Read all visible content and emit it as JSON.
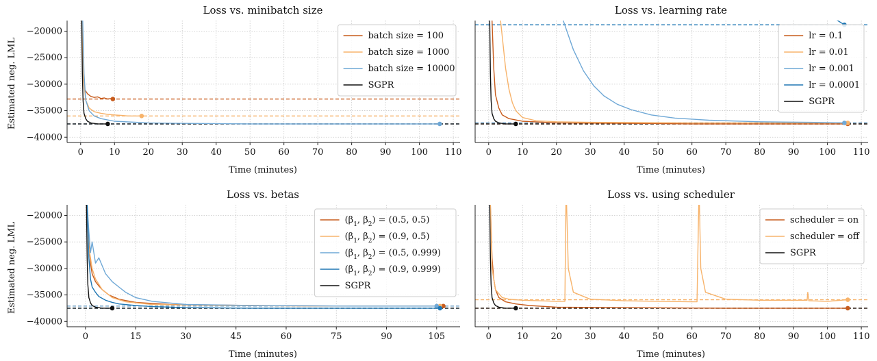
{
  "colors": {
    "orange_dark": "#c75b1c",
    "orange_light": "#f7b36b",
    "blue_light": "#6fa8d6",
    "blue_dark": "#1f77b4",
    "black": "#111111"
  },
  "ylabel": "Estimated neg. LML",
  "chart_data": [
    {
      "type": "line",
      "title": "Loss vs. minibatch size",
      "xlabel": "Time (minutes)",
      "ylabel": "Estimated neg. LML",
      "xlim": [
        -4,
        112
      ],
      "ylim": [
        -41000,
        -18000
      ],
      "xticks": [
        0,
        10,
        20,
        30,
        40,
        50,
        60,
        70,
        80,
        90,
        100,
        110
      ],
      "yticks": [
        -20000,
        -25000,
        -30000,
        -35000,
        -40000
      ],
      "grid": true,
      "legend": "top-right",
      "series": [
        {
          "name": "batch size = 100",
          "color": "#c75b1c",
          "x": [
            0.5,
            0.8,
            1.2,
            2,
            3,
            4,
            5,
            6,
            7,
            8,
            9,
            9.5
          ],
          "y": [
            -18000,
            -28000,
            -31000,
            -31800,
            -32300,
            -32500,
            -32400,
            -32700,
            -32600,
            -32800,
            -32700,
            -32800
          ],
          "final": -32800,
          "end_x": 9.5
        },
        {
          "name": "batch size = 1000",
          "color": "#f7b36b",
          "x": [
            0.5,
            0.8,
            1.5,
            2.5,
            4,
            6,
            8,
            10,
            12,
            14,
            16,
            18
          ],
          "y": [
            -18000,
            -29000,
            -33000,
            -34500,
            -35200,
            -35500,
            -35700,
            -35800,
            -35900,
            -36000,
            -36000,
            -36000
          ],
          "final": -36000,
          "end_x": 18
        },
        {
          "name": "batch size = 10000",
          "color": "#6fa8d6",
          "x": [
            0.6,
            1,
            1.5,
            2.5,
            4,
            6,
            10,
            20,
            30,
            50,
            70,
            90,
            106
          ],
          "y": [
            -18000,
            -28000,
            -33000,
            -35000,
            -36000,
            -36500,
            -37000,
            -37300,
            -37400,
            -37500,
            -37500,
            -37500,
            -37500
          ],
          "final": -37500,
          "end_x": 106
        },
        {
          "name": "SGPR",
          "color": "#111111",
          "x": [
            0.3,
            0.5,
            0.7,
            1,
            1.5,
            2,
            3,
            5,
            8
          ],
          "y": [
            -18000,
            -28000,
            -33000,
            -35500,
            -36500,
            -37000,
            -37300,
            -37500,
            -37500
          ],
          "final": -37500,
          "end_x": 8
        }
      ]
    },
    {
      "type": "line",
      "title": "Loss vs. learning rate",
      "xlabel": "Time (minutes)",
      "ylabel": "",
      "xlim": [
        -4,
        112
      ],
      "ylim": [
        -41000,
        -18000
      ],
      "xticks": [
        0,
        10,
        20,
        30,
        40,
        50,
        60,
        70,
        80,
        90,
        100,
        110
      ],
      "yticks": [],
      "grid": true,
      "legend": "top-right",
      "series": [
        {
          "name": "lr = 0.1",
          "color": "#c75b1c",
          "x": [
            1,
            1.5,
            2,
            3,
            4,
            6,
            10,
            20,
            40,
            60,
            80,
            106
          ],
          "y": [
            -18000,
            -27000,
            -32000,
            -34500,
            -35800,
            -36500,
            -37000,
            -37300,
            -37400,
            -37500,
            -37500,
            -37500
          ],
          "final": -37500,
          "end_x": 106
        },
        {
          "name": "lr = 0.01",
          "color": "#f7b36b",
          "x": [
            3.5,
            4,
            5,
            6,
            7,
            8,
            10,
            14,
            20,
            30,
            60,
            106
          ],
          "y": [
            -18000,
            -21000,
            -27000,
            -31000,
            -33500,
            -35000,
            -36300,
            -36900,
            -37100,
            -37200,
            -37300,
            -37300
          ],
          "final": -37300,
          "end_x": 106
        },
        {
          "name": "lr = 0.001",
          "color": "#6fa8d6",
          "x": [
            22,
            25,
            28,
            31,
            34,
            38,
            42,
            48,
            55,
            65,
            80,
            95,
            105
          ],
          "y": [
            -18000,
            -23500,
            -27500,
            -30300,
            -32200,
            -33800,
            -34800,
            -35800,
            -36400,
            -36800,
            -37100,
            -37200,
            -37300
          ],
          "final": -37300,
          "end_x": 105
        },
        {
          "name": "lr = 0.0001",
          "color": "#1f77b4",
          "x": [
            100,
            103,
            105
          ],
          "y": [
            -17200,
            -18000,
            -18800
          ],
          "final": -18800,
          "end_x": 105
        },
        {
          "name": "SGPR",
          "color": "#111111",
          "x": [
            0.3,
            0.5,
            0.7,
            1,
            1.5,
            2,
            3,
            5,
            8
          ],
          "y": [
            -18000,
            -28000,
            -33000,
            -35500,
            -36500,
            -37000,
            -37300,
            -37500,
            -37500
          ],
          "final": -37500,
          "end_x": 8
        }
      ]
    },
    {
      "type": "line",
      "title": "Loss vs. betas",
      "xlabel": "Time (minutes)",
      "ylabel": "Estimated neg. LML",
      "xlim": [
        -5.5,
        112
      ],
      "ylim": [
        -41000,
        -18000
      ],
      "xticks": [
        0,
        15,
        30,
        45,
        60,
        75,
        90,
        105
      ],
      "yticks": [
        -20000,
        -25000,
        -30000,
        -35000,
        -40000
      ],
      "grid": true,
      "legend": "top-right",
      "series": [
        {
          "name": "(β1, β2) = (0.5, 0.5)",
          "color": "#c75b1c",
          "x": [
            0.5,
            1,
            1.5,
            2,
            3,
            4,
            5,
            7,
            10,
            15,
            25,
            50,
            80,
            107
          ],
          "y": [
            -18000,
            -25000,
            -29000,
            -31000,
            -32500,
            -33300,
            -34000,
            -35000,
            -35800,
            -36400,
            -36800,
            -37000,
            -37100,
            -37100
          ],
          "final": -37100,
          "end_x": 107
        },
        {
          "name": "(β1, β2) = (0.9, 0.5)",
          "color": "#f7b36b",
          "x": [
            0.5,
            1,
            2,
            3,
            5,
            8,
            12,
            20,
            40,
            70,
            106
          ],
          "y": [
            -18000,
            -26000,
            -30000,
            -32000,
            -34000,
            -35500,
            -36300,
            -36800,
            -37000,
            -37100,
            -37100
          ],
          "final": -37100,
          "end_x": 106
        },
        {
          "name": "(β1, β2) = (0.5, 0.999)",
          "color": "#6fa8d6",
          "x": [
            0.5,
            1,
            1.5,
            2,
            3,
            4,
            6,
            8,
            10,
            12,
            15,
            20,
            30,
            50,
            80,
            105
          ],
          "y": [
            -18000,
            -23000,
            -27000,
            -25000,
            -29000,
            -28000,
            -31000,
            -32500,
            -33500,
            -34500,
            -35500,
            -36200,
            -36800,
            -37000,
            -37100,
            -37100
          ],
          "final": -37100,
          "end_x": 105
        },
        {
          "name": "(β1, β2) = (0.9, 0.999)",
          "color": "#1f77b4",
          "x": [
            0.5,
            1,
            1.5,
            2,
            3,
            4,
            6,
            8,
            10,
            15,
            20,
            30,
            50,
            80,
            106
          ],
          "y": [
            -18000,
            -28000,
            -32000,
            -33500,
            -34500,
            -35300,
            -36000,
            -36400,
            -36700,
            -37000,
            -37200,
            -37400,
            -37500,
            -37500,
            -37500
          ],
          "final": -37500,
          "end_x": 106
        },
        {
          "name": "SGPR",
          "color": "#111111",
          "x": [
            0.3,
            0.5,
            0.7,
            1,
            1.5,
            2,
            3,
            5,
            8
          ],
          "y": [
            -18000,
            -28000,
            -33000,
            -35500,
            -36500,
            -37000,
            -37300,
            -37500,
            -37500
          ],
          "final": -37500,
          "end_x": 8
        }
      ]
    },
    {
      "type": "line",
      "title": "Loss vs. using scheduler",
      "xlabel": "Time (minutes)",
      "ylabel": "",
      "xlim": [
        -4,
        112
      ],
      "ylim": [
        -41000,
        -18000
      ],
      "xticks": [
        0,
        10,
        20,
        30,
        40,
        50,
        60,
        70,
        80,
        90,
        100,
        110
      ],
      "yticks": [],
      "grid": true,
      "legend": "top-right",
      "series": [
        {
          "name": "scheduler = on",
          "color": "#c75b1c",
          "x": [
            0.5,
            1,
            1.5,
            2,
            3,
            5,
            8,
            12,
            20,
            40,
            70,
            106
          ],
          "y": [
            -18000,
            -28000,
            -32000,
            -34000,
            -35500,
            -36300,
            -36700,
            -37000,
            -37300,
            -37400,
            -37500,
            -37500
          ],
          "final": -37500,
          "end_x": 106
        },
        {
          "name": "scheduler = off",
          "color": "#f7b36b",
          "x": [
            0.5,
            1,
            2,
            4,
            6,
            10,
            15,
            20,
            22.5,
            22.8,
            23,
            23.5,
            25,
            30,
            40,
            50,
            60,
            61.5,
            62,
            62.2,
            62.6,
            64,
            70,
            80,
            94,
            94.2,
            94.5,
            100,
            106
          ],
          "y": [
            -18000,
            -30000,
            -34000,
            -35500,
            -35800,
            -36000,
            -36100,
            -36200,
            -36200,
            -18000,
            -18000,
            -30000,
            -34500,
            -35800,
            -36100,
            -36200,
            -36300,
            -36300,
            -18000,
            -18000,
            -30000,
            -34500,
            -35800,
            -36000,
            -36000,
            -34500,
            -36100,
            -36200,
            -35900
          ],
          "final": -35900,
          "end_x": 106
        },
        {
          "name": "SGPR",
          "color": "#111111",
          "x": [
            0.3,
            0.5,
            0.7,
            1,
            1.5,
            2,
            3,
            5,
            8
          ],
          "y": [
            -18000,
            -28000,
            -33000,
            -35500,
            -36500,
            -37000,
            -37300,
            -37500,
            -37500
          ],
          "final": -37500,
          "end_x": 8
        }
      ]
    }
  ]
}
